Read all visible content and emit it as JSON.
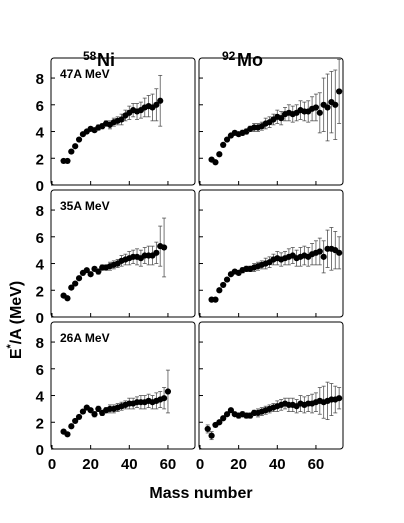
{
  "figure": {
    "column_titles": [
      {
        "mass": "58",
        "element": "Ni"
      },
      {
        "mass": "92",
        "element": "Mo"
      }
    ],
    "ylabel": {
      "main": "E",
      "sup": "*",
      "rest": "/A (MeV)"
    },
    "xlabel": "Mass number",
    "panel_labels": [
      "47A MeV",
      "35A MeV",
      "26A MeV"
    ],
    "x_ticks": [
      "0",
      "20",
      "40",
      "60"
    ],
    "y_ticks": [
      "0",
      "2",
      "4",
      "6",
      "8"
    ]
  },
  "chart_data": {
    "type": "scatter",
    "xlabel": "Mass number",
    "ylabel": "E*/A (MeV)",
    "xlim": [
      0,
      74
    ],
    "ylim": [
      0,
      9.5
    ],
    "grid": false,
    "panels": [
      {
        "row": 0,
        "col": 0,
        "label": "47A MeV",
        "system": "58Ni",
        "x": [
          6,
          8,
          10,
          12,
          14,
          16,
          18,
          20,
          22,
          24,
          26,
          28,
          30,
          32,
          34,
          36,
          38,
          40,
          42,
          44,
          46,
          48,
          50,
          52,
          54,
          56
        ],
        "y": [
          1.8,
          1.8,
          2.5,
          2.9,
          3.4,
          3.8,
          4.0,
          4.2,
          4.1,
          4.3,
          4.4,
          4.6,
          4.5,
          4.7,
          4.8,
          4.9,
          5.2,
          5.4,
          5.6,
          5.5,
          5.6,
          5.8,
          5.9,
          5.8,
          6.0,
          6.3
        ],
        "err": [
          0,
          0,
          0,
          0,
          0,
          0,
          0,
          0.1,
          0.1,
          0.2,
          0.2,
          0.2,
          0.3,
          0.3,
          0.3,
          0.4,
          0.4,
          0.5,
          0.5,
          0.6,
          0.6,
          0.7,
          0.8,
          1.0,
          1.2,
          1.9
        ]
      },
      {
        "row": 0,
        "col": 1,
        "label": "",
        "system": "92Mo",
        "x": [
          6,
          8,
          10,
          12,
          14,
          16,
          18,
          20,
          22,
          24,
          26,
          28,
          30,
          32,
          34,
          36,
          38,
          40,
          42,
          44,
          46,
          48,
          50,
          52,
          54,
          56,
          58,
          60,
          62,
          64,
          66,
          68,
          70,
          72
        ],
        "y": [
          1.9,
          1.7,
          2.3,
          3.0,
          3.4,
          3.7,
          3.9,
          3.8,
          3.9,
          4.0,
          4.2,
          4.3,
          4.3,
          4.4,
          4.6,
          4.7,
          4.9,
          5.1,
          5.0,
          5.3,
          5.4,
          5.3,
          5.4,
          5.6,
          5.5,
          5.5,
          5.7,
          5.8,
          5.4,
          6.0,
          5.8,
          6.2,
          6.0,
          7.0
        ],
        "err": [
          0,
          0,
          0,
          0,
          0,
          0,
          0,
          0,
          0.2,
          0.2,
          0.2,
          0.3,
          0.3,
          0.3,
          0.4,
          0.4,
          0.4,
          0.5,
          0.5,
          0.5,
          0.6,
          0.6,
          0.6,
          0.7,
          0.7,
          0.8,
          0.9,
          1.0,
          1.5,
          2.0,
          2.5,
          2.3,
          2.6,
          2.4
        ]
      },
      {
        "row": 1,
        "col": 0,
        "label": "35A MeV",
        "system": "58Ni",
        "x": [
          6,
          8,
          10,
          12,
          14,
          16,
          18,
          20,
          22,
          24,
          26,
          28,
          30,
          32,
          34,
          36,
          38,
          40,
          42,
          44,
          46,
          48,
          50,
          52,
          54,
          56,
          58
        ],
        "y": [
          1.6,
          1.4,
          2.2,
          2.5,
          2.9,
          3.3,
          3.5,
          3.2,
          3.6,
          3.4,
          3.7,
          3.7,
          3.8,
          3.9,
          4.0,
          4.2,
          4.3,
          4.4,
          4.5,
          4.5,
          4.4,
          4.6,
          4.6,
          4.6,
          4.8,
          5.3,
          5.2
        ],
        "err": [
          0,
          0,
          0,
          0,
          0,
          0,
          0,
          0,
          0.1,
          0.2,
          0.2,
          0.2,
          0.3,
          0.3,
          0.3,
          0.4,
          0.4,
          0.5,
          0.5,
          0.6,
          0.6,
          0.6,
          0.7,
          0.7,
          0.8,
          1.5,
          2.2
        ]
      },
      {
        "row": 1,
        "col": 1,
        "label": "",
        "system": "92Mo",
        "x": [
          6,
          8,
          10,
          12,
          14,
          16,
          18,
          20,
          22,
          24,
          26,
          28,
          30,
          32,
          34,
          36,
          38,
          40,
          42,
          44,
          46,
          48,
          50,
          52,
          54,
          56,
          58,
          60,
          62,
          64,
          66,
          68,
          70,
          72
        ],
        "y": [
          1.3,
          1.3,
          2.0,
          2.4,
          2.8,
          3.2,
          3.4,
          3.3,
          3.5,
          3.6,
          3.6,
          3.7,
          3.8,
          3.9,
          4.0,
          4.1,
          4.3,
          4.4,
          4.3,
          4.4,
          4.5,
          4.6,
          4.4,
          4.5,
          4.6,
          4.5,
          4.7,
          4.8,
          4.9,
          4.5,
          5.1,
          5.1,
          5.0,
          4.8
        ],
        "err": [
          0,
          0,
          0,
          0,
          0,
          0,
          0,
          0,
          0.2,
          0.2,
          0.2,
          0.3,
          0.3,
          0.3,
          0.4,
          0.4,
          0.4,
          0.5,
          0.5,
          0.5,
          0.6,
          0.6,
          0.6,
          0.7,
          0.7,
          0.7,
          0.8,
          0.9,
          1.0,
          1.2,
          1.4,
          1.6,
          1.4,
          1.2
        ]
      },
      {
        "row": 2,
        "col": 0,
        "label": "26A MeV",
        "system": "58Ni",
        "x": [
          6,
          8,
          10,
          12,
          14,
          16,
          18,
          20,
          22,
          24,
          26,
          28,
          30,
          32,
          34,
          36,
          38,
          40,
          42,
          44,
          46,
          48,
          50,
          52,
          54,
          56,
          58,
          60
        ],
        "y": [
          1.3,
          1.1,
          1.7,
          2.1,
          2.4,
          2.8,
          3.1,
          2.9,
          2.6,
          3.0,
          2.7,
          2.9,
          3.0,
          3.0,
          3.1,
          3.2,
          3.3,
          3.4,
          3.4,
          3.5,
          3.5,
          3.5,
          3.6,
          3.5,
          3.6,
          3.7,
          3.8,
          4.3
        ],
        "err": [
          0,
          0,
          0,
          0,
          0,
          0,
          0,
          0,
          0.2,
          0.2,
          0.2,
          0.2,
          0.3,
          0.3,
          0.3,
          0.3,
          0.3,
          0.4,
          0.4,
          0.4,
          0.5,
          0.5,
          0.5,
          0.5,
          0.6,
          0.6,
          0.8,
          1.6
        ]
      },
      {
        "row": 2,
        "col": 1,
        "label": "",
        "system": "92Mo",
        "x": [
          4,
          6,
          8,
          10,
          12,
          14,
          16,
          18,
          20,
          22,
          24,
          26,
          28,
          30,
          32,
          34,
          36,
          38,
          40,
          42,
          44,
          46,
          48,
          50,
          52,
          54,
          56,
          58,
          60,
          62,
          64,
          66,
          68,
          70,
          72
        ],
        "y": [
          1.5,
          1.0,
          1.8,
          2.0,
          2.3,
          2.6,
          2.9,
          2.6,
          2.5,
          2.6,
          2.5,
          2.5,
          2.7,
          2.7,
          2.8,
          2.9,
          3.0,
          3.1,
          3.2,
          3.3,
          3.4,
          3.3,
          3.3,
          3.2,
          3.4,
          3.3,
          3.4,
          3.4,
          3.5,
          3.6,
          3.5,
          3.6,
          3.7,
          3.7,
          3.8
        ],
        "err": [
          0.3,
          0.3,
          0,
          0,
          0,
          0,
          0,
          0,
          0.2,
          0.2,
          0.2,
          0.2,
          0.2,
          0.3,
          0.3,
          0.3,
          0.3,
          0.3,
          0.4,
          0.4,
          0.4,
          0.5,
          0.5,
          0.5,
          0.6,
          0.6,
          0.6,
          0.7,
          0.7,
          1.0,
          1.2,
          1.4,
          1.2,
          1.0,
          0.8
        ]
      }
    ]
  }
}
